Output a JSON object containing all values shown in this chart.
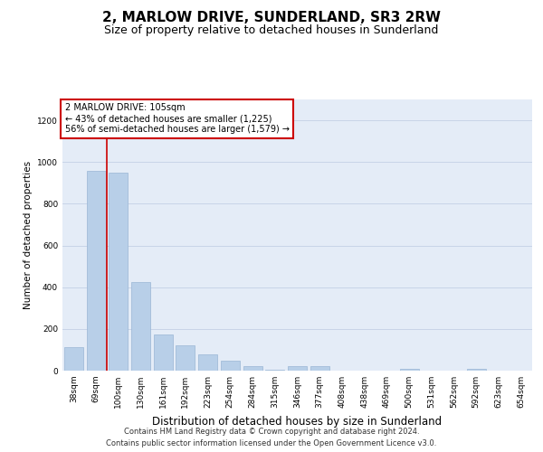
{
  "title": "2, MARLOW DRIVE, SUNDERLAND, SR3 2RW",
  "subtitle": "Size of property relative to detached houses in Sunderland",
  "xlabel": "Distribution of detached houses by size in Sunderland",
  "ylabel": "Number of detached properties",
  "categories": [
    "38sqm",
    "69sqm",
    "100sqm",
    "130sqm",
    "161sqm",
    "192sqm",
    "223sqm",
    "254sqm",
    "284sqm",
    "315sqm",
    "346sqm",
    "377sqm",
    "408sqm",
    "438sqm",
    "469sqm",
    "500sqm",
    "531sqm",
    "562sqm",
    "592sqm",
    "623sqm",
    "654sqm"
  ],
  "values": [
    113,
    958,
    950,
    425,
    175,
    120,
    80,
    48,
    20,
    5,
    20,
    20,
    0,
    0,
    0,
    8,
    0,
    0,
    8,
    0,
    0
  ],
  "bar_color": "#b8cfe8",
  "bar_edge_color": "#9ab5d5",
  "vline_x": 2.0,
  "annotation_title": "2 MARLOW DRIVE: 105sqm",
  "annotation_line1": "← 43% of detached houses are smaller (1,225)",
  "annotation_line2": "56% of semi-detached houses are larger (1,579) →",
  "annotation_box_color": "#ffffff",
  "annotation_box_edge_color": "#cc0000",
  "vline_color": "#cc0000",
  "ylim": [
    0,
    1300
  ],
  "yticks": [
    0,
    200,
    400,
    600,
    800,
    1000,
    1200
  ],
  "grid_color": "#c8d4e8",
  "background_color": "#e4ecf7",
  "footer_line1": "Contains HM Land Registry data © Crown copyright and database right 2024.",
  "footer_line2": "Contains public sector information licensed under the Open Government Licence v3.0.",
  "title_fontsize": 11,
  "subtitle_fontsize": 9,
  "xlabel_fontsize": 8.5,
  "ylabel_fontsize": 7.5,
  "tick_fontsize": 6.5,
  "annotation_fontsize": 7,
  "footer_fontsize": 6
}
